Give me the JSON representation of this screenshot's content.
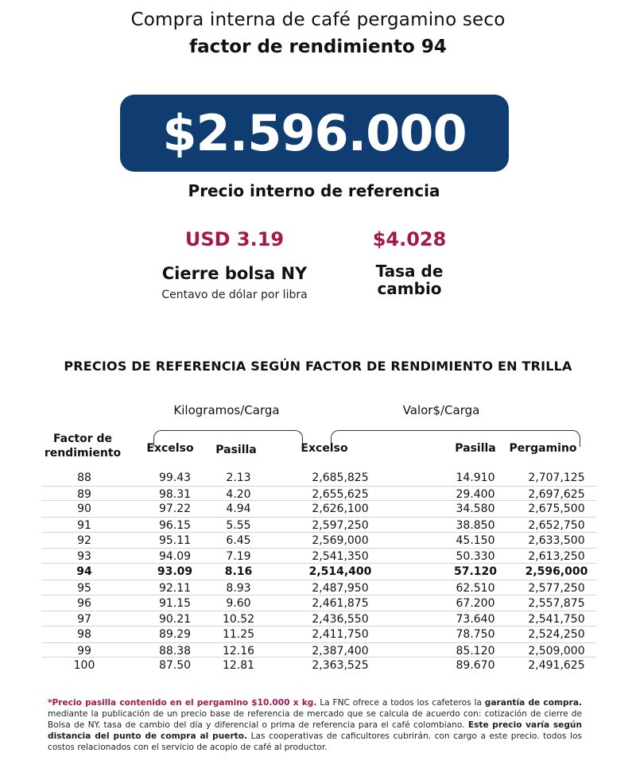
{
  "header": {
    "title": "Compra interna de café pergamino seco",
    "subtitle": "factor de rendimiento 94"
  },
  "reference_price": {
    "value": "$2.596.000",
    "label": "Precio interno de referencia"
  },
  "ny_close": {
    "value": "USD 3.19",
    "label": "Cierre bolsa NY",
    "unit": "Centavo de dólar por libra"
  },
  "exchange_rate": {
    "value": "$4.028",
    "label_line1": "Tasa de",
    "label_line2": "cambio"
  },
  "table": {
    "section_title": "PRECIOS DE REFERENCIA SEGÚN FACTOR DE RENDIMIENTO EN TRILLA",
    "group_kg": "Kilogramos/Carga",
    "group_value": "Valor$/Carga",
    "headers": {
      "factor_line1": "Factor de",
      "factor_line2": "rendimiento",
      "excelso_kg": "Excelso",
      "pasilla_kg": "Pasilla",
      "excelso_value": "Excelso",
      "pasilla_value": "Pasilla",
      "pergamino": "Pergamino"
    },
    "rows": [
      [
        "88",
        "99.43",
        "2.13",
        "2,685,825",
        "14.910",
        "2,707,125"
      ],
      [
        "89",
        "98.31",
        "4.20",
        "2,655,625",
        "29.400",
        "2,697,625"
      ],
      [
        "90",
        "97.22",
        "4.94",
        "2,626,100",
        "34.580",
        "2,675,500"
      ],
      [
        "91",
        "96.15",
        "5.55",
        "2,597,250",
        "38.850",
        "2,652,750"
      ],
      [
        "92",
        "95.11",
        "6.45",
        "2,569,000",
        "45.150",
        "2,633,500"
      ],
      [
        "93",
        "94.09",
        "7.19",
        "2,541,350",
        "50.330",
        "2,613,250"
      ],
      [
        "94",
        "93.09",
        "8.16",
        "2,514,400",
        "57.120",
        "2,596,000"
      ],
      [
        "95",
        "92.11",
        "8.93",
        "2,487,950",
        "62.510",
        "2,577,250"
      ],
      [
        "96",
        "91.15",
        "9.60",
        "2,461,875",
        "67.200",
        "2,557,875"
      ],
      [
        "97",
        "90.21",
        "10.52",
        "2,436,550",
        "73.640",
        "2,541,750"
      ],
      [
        "98",
        "89.29",
        "11.25",
        "2,411,750",
        "78.750",
        "2,524,250"
      ],
      [
        "99",
        "88.38",
        "12.16",
        "2,387,400",
        "85.120",
        "2,509,000"
      ],
      [
        "100",
        "87.50",
        "12.81",
        "2,363,525",
        "89.670",
        "2,491,625"
      ]
    ],
    "highlighted_factor": "94"
  },
  "footnote": {
    "part1_accent": "*Precio pasilla contenido en el pergamino $10.000 x kg.",
    "part2": " La FNC ofrece a todos los cafeteros la ",
    "part3_bold": "garantía de compra.",
    "part4": " mediante la publicación de un precio base de referencia de mercado que se calcula de acuerdo con: cotización de cierre de Bolsa de NY. tasa de cambio del día y diferencial o prima de referencia para el café colombiano. ",
    "part5_bold": "Este precio varía según distancia del punto de compra al puerto.",
    "part6": " Las cooperativas de caficultores cubrirán. con cargo a este precio. todos los costos relacionados con el servicio de acopio de café al productor."
  }
}
